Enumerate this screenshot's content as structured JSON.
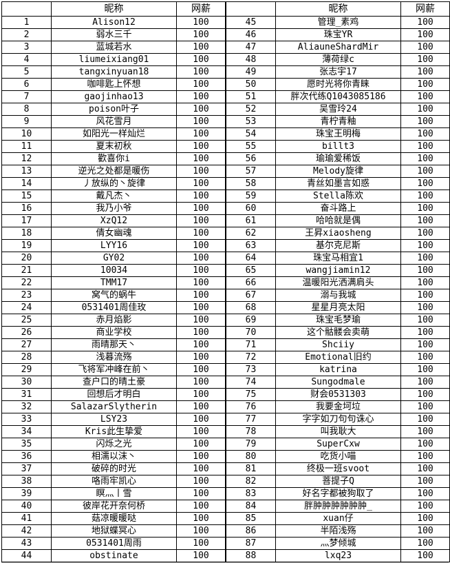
{
  "colors": {
    "border": "#000000",
    "text": "#000000",
    "background": "#ffffff",
    "bottom_gridline": "#b8b8b8"
  },
  "table": {
    "headers": {
      "index": "",
      "nickname": "昵称",
      "salary": "网薪"
    },
    "left_rows": [
      [
        "1",
        "Alison12",
        "100"
      ],
      [
        "2",
        "弱水三千",
        "100"
      ],
      [
        "3",
        "蓝城若水",
        "100"
      ],
      [
        "4",
        "liumeixiang01",
        "100"
      ],
      [
        "5",
        "tangxinyuan18",
        "100"
      ],
      [
        "6",
        "咖啡匙上怀想",
        "100"
      ],
      [
        "7",
        "gaojinhao13",
        "100"
      ],
      [
        "8",
        "poison叶子",
        "100"
      ],
      [
        "9",
        "风花雪月",
        "100"
      ],
      [
        "10",
        "如阳光一样灿烂",
        "100"
      ],
      [
        "11",
        "夏末初秋",
        "100"
      ],
      [
        "12",
        "歡喜你i",
        "100"
      ],
      [
        "13",
        "逆光之处都是暖伤",
        "100"
      ],
      [
        "14",
        "丿放纵的丶旋律",
        "100"
      ],
      [
        "15",
        "戴凡杰丶",
        "100"
      ],
      [
        "16",
        "我乃小爷",
        "100"
      ],
      [
        "17",
        "XzQ12",
        "100"
      ],
      [
        "18",
        "倩女幽魂",
        "100"
      ],
      [
        "19",
        "LYY16",
        "100"
      ],
      [
        "20",
        "GY02",
        "100"
      ],
      [
        "21",
        "10034",
        "100"
      ],
      [
        "22",
        "TMM17",
        "100"
      ],
      [
        "23",
        "窝气的蜗牛",
        "100"
      ],
      [
        "24",
        "0531401周佳玫",
        "100"
      ],
      [
        "25",
        "赤月焰影",
        "100"
      ],
      [
        "26",
        "商业学校",
        "100"
      ],
      [
        "27",
        "雨晴那天丶",
        "100"
      ],
      [
        "28",
        "浅暮流殇",
        "100"
      ],
      [
        "29",
        "飞将军冲峰在前丶",
        "100"
      ],
      [
        "30",
        "查户口的晴土豪",
        "100"
      ],
      [
        "31",
        "回想后才明白",
        "100"
      ],
      [
        "32",
        "SalazarSlytherin",
        "100"
      ],
      [
        "33",
        "LSY23",
        "100"
      ],
      [
        "34",
        "Kris此生挚爱",
        "100"
      ],
      [
        "35",
        "闪烁之光",
        "100"
      ],
      [
        "36",
        "相濡以沫丶",
        "100"
      ],
      [
        "37",
        "破碎的时光",
        "100"
      ],
      [
        "38",
        "咯雨牢凯心",
        "100"
      ],
      [
        "39",
        "瞑灬丨雪",
        "100"
      ],
      [
        "40",
        "彼岸花开奈何桥",
        "100"
      ],
      [
        "41",
        "菇凉暖暖哒",
        "100"
      ],
      [
        "42",
        "地狱蝶冥心",
        "100"
      ],
      [
        "43",
        "0531401周雨",
        "100"
      ],
      [
        "44",
        "obstinate",
        "100"
      ]
    ],
    "right_rows": [
      [
        "45",
        "管理_素鸡",
        "100"
      ],
      [
        "46",
        "珠宝YR",
        "100"
      ],
      [
        "47",
        "AliauneShardMir",
        "100"
      ],
      [
        "48",
        "薄荷绿c",
        "100"
      ],
      [
        "49",
        "张志宇17",
        "100"
      ],
      [
        "50",
        "愿时光将你青睐",
        "100"
      ],
      [
        "51",
        "胖次代练Q1043085186",
        "100"
      ],
      [
        "52",
        "吴雪玲24",
        "100"
      ],
      [
        "53",
        "青柠青釉",
        "100"
      ],
      [
        "54",
        "珠宝王明梅",
        "100"
      ],
      [
        "55",
        "billt3",
        "100"
      ],
      [
        "56",
        "瑜瑜爱稀饭",
        "100"
      ],
      [
        "57",
        "Melody旋律",
        "100"
      ],
      [
        "58",
        "青丝如墨言如惑",
        "100"
      ],
      [
        "59",
        "Stella陈欢",
        "100"
      ],
      [
        "60",
        "奋斗路上",
        "100"
      ],
      [
        "61",
        "哈哈就是偶",
        "100"
      ],
      [
        "62",
        "王昇xiaosheng",
        "100"
      ],
      [
        "63",
        "基尔克尼斯",
        "100"
      ],
      [
        "64",
        "珠宝马相宜1",
        "100"
      ],
      [
        "65",
        "wangjiamin12",
        "100"
      ],
      [
        "66",
        "温暖阳光洒满肩头",
        "100"
      ],
      [
        "67",
        "溺与我城",
        "100"
      ],
      [
        "68",
        "星星月亮太阳",
        "100"
      ],
      [
        "69",
        "珠宝毛梦瑜",
        "100"
      ],
      [
        "70",
        "这个骷髅会卖萌",
        "100"
      ],
      [
        "71",
        "Shciiy",
        "100"
      ],
      [
        "72",
        "Emotional旧约",
        "100"
      ],
      [
        "73",
        "katrina",
        "100"
      ],
      [
        "74",
        "Sungodmale",
        "100"
      ],
      [
        "75",
        "财会0531303",
        "100"
      ],
      [
        "76",
        "我要金坷垃",
        "100"
      ],
      [
        "77",
        "字字如刀句句诛心",
        "100"
      ],
      [
        "78",
        "叫我耿大",
        "100"
      ],
      [
        "79",
        "SuperCxw",
        "100"
      ],
      [
        "80",
        "吃货小喵",
        "100"
      ],
      [
        "81",
        "终极一班svoot",
        "100"
      ],
      [
        "82",
        "菩提子Q",
        "100"
      ],
      [
        "83",
        "好名字都被狗取了",
        "100"
      ],
      [
        "84",
        "胖肿肿肿肿肿肿_",
        "100"
      ],
      [
        "85",
        "xuan仔",
        "100"
      ],
      [
        "86",
        "半陌浅殇",
        "100"
      ],
      [
        "87",
        "灬梦倾城",
        "100"
      ],
      [
        "88",
        "lxq23",
        "100"
      ]
    ]
  }
}
